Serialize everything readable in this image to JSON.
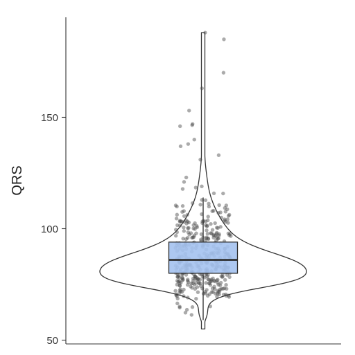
{
  "chart_data": {
    "type": "violin",
    "title": "",
    "xlabel": "",
    "ylabel": "QRS",
    "ylim": [
      49,
      194
    ],
    "yticks": [
      50,
      100,
      150
    ],
    "grid": false,
    "legend": "none",
    "box": {
      "q1": 80,
      "median": 86,
      "q3": 94,
      "whisker_low": 59,
      "whisker_high": 114,
      "fill": "#a4c2f0",
      "stroke": "#2b2b2b"
    },
    "violin_range": [
      55,
      188
    ],
    "outliers": [
      185,
      188,
      170,
      163,
      153,
      147,
      146.5,
      146,
      140,
      138,
      137,
      133,
      131,
      123,
      121,
      119
    ],
    "colors": {
      "points": "#444444",
      "outline": "#333333"
    }
  }
}
